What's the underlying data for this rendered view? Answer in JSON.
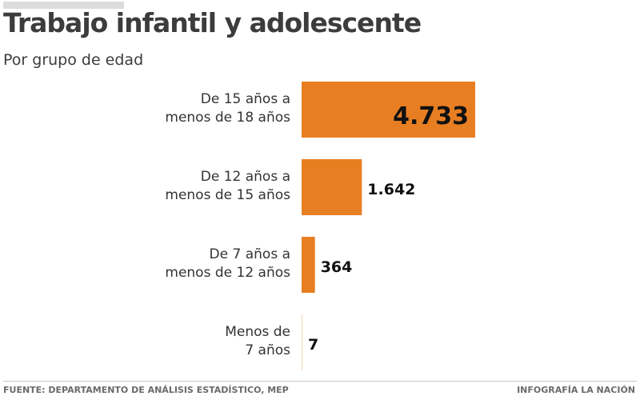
{
  "header": {
    "title": "Trabajo infantil y adolescente",
    "subtitle": "Por grupo de edad"
  },
  "footer": {
    "source": "FUENTE: DEPARTAMENTO DE ANÁLISIS ESTADÍSTICO, MEP",
    "credit": "INFOGRAFÍA LA NACIÓN"
  },
  "colors": {
    "bar": "#e87e22",
    "text": "#3c3c3c"
  },
  "chart_data": {
    "type": "bar",
    "orientation": "horizontal",
    "title": "Trabajo infantil y adolescente",
    "subtitle": "Por grupo de edad",
    "xlabel": "",
    "ylabel": "",
    "grid": false,
    "legend": "none",
    "categories": [
      [
        "De 15 años a",
        "menos de 18 años"
      ],
      [
        "De 12 años a",
        "menos de 15 años"
      ],
      [
        "De 7 años a",
        "menos de 12 años"
      ],
      [
        "Menos de",
        "7 años"
      ]
    ],
    "values": [
      4733,
      1642,
      364,
      7
    ],
    "value_labels": [
      "4.733",
      "1.642",
      "364",
      "7"
    ],
    "xlim": [
      0,
      4733
    ]
  }
}
